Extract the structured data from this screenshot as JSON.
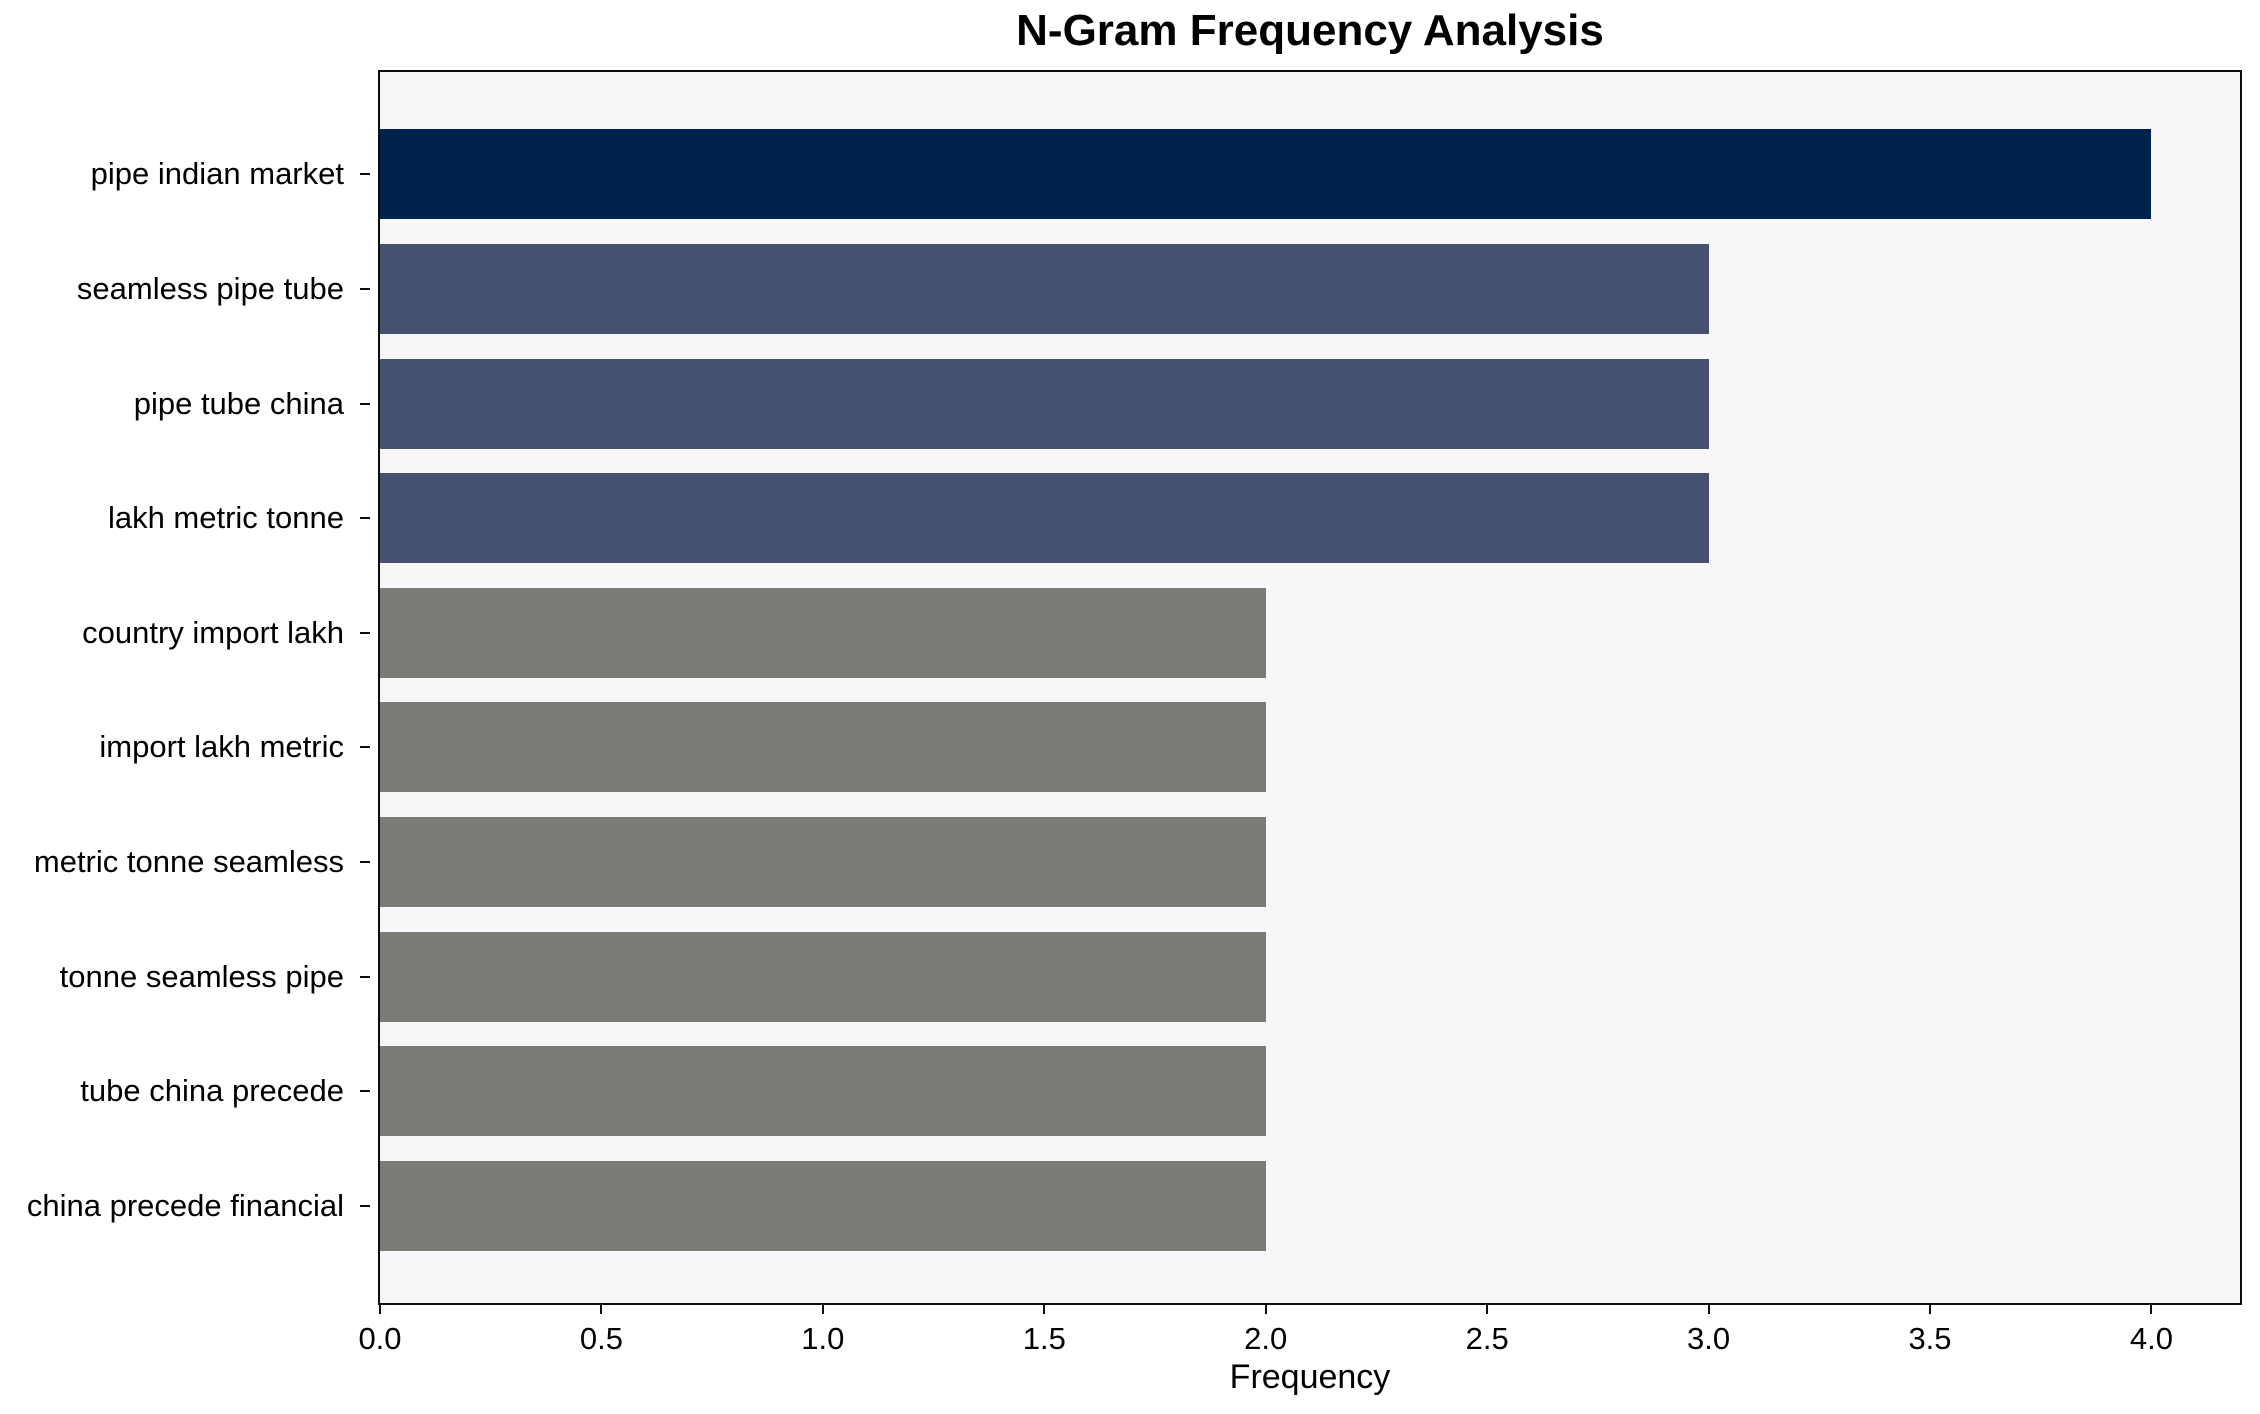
{
  "chart_data": {
    "type": "bar",
    "orientation": "horizontal",
    "title": "N-Gram Frequency Analysis",
    "xlabel": "Frequency",
    "ylabel": "",
    "categories": [
      "pipe indian market",
      "seamless pipe tube",
      "pipe tube china",
      "lakh metric tonne",
      "country import lakh",
      "import lakh metric",
      "metric tonne seamless",
      "tonne seamless pipe",
      "tube china precede",
      "china precede financial"
    ],
    "values": [
      4,
      3,
      3,
      3,
      2,
      2,
      2,
      2,
      2,
      2
    ],
    "xlim": [
      0,
      4.2
    ],
    "xticks": [
      "0.0",
      "0.5",
      "1.0",
      "1.5",
      "2.0",
      "2.5",
      "3.0",
      "3.5",
      "4.0"
    ],
    "grid": false,
    "legend": "none",
    "bar_colors": [
      "#00234d",
      "#46506f",
      "#46506f",
      "#46506f",
      "#7a7b76",
      "#7a7b76",
      "#7a7b76",
      "#7a7b76",
      "#7a7b76",
      "#7a7b76"
    ],
    "colors": {
      "plot_background": "#f7f7f9",
      "figure_background": "#ffffff",
      "axis_line": "#0d0d0d",
      "text": "#000000"
    }
  }
}
